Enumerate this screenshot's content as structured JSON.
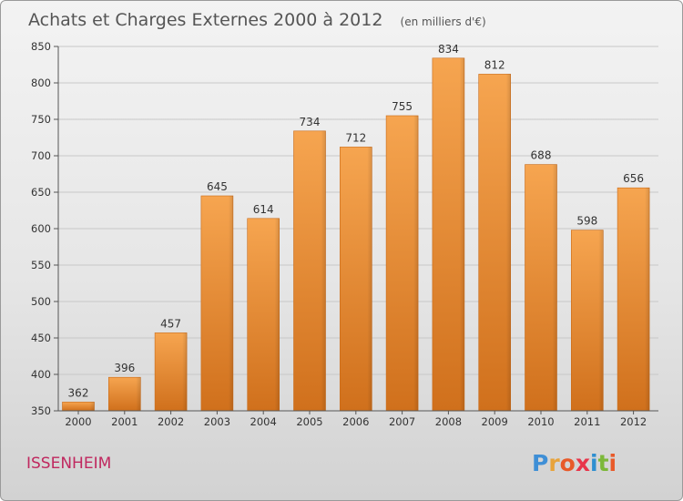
{
  "chart_data": {
    "type": "bar",
    "title": "Achats et Charges Externes 2000 à 2012",
    "subtitle": "(en milliers d'€)",
    "categories": [
      "2000",
      "2001",
      "2002",
      "2003",
      "2004",
      "2005",
      "2006",
      "2007",
      "2008",
      "2009",
      "2010",
      "2011",
      "2012"
    ],
    "values": [
      362,
      396,
      457,
      645,
      614,
      734,
      712,
      755,
      834,
      812,
      688,
      598,
      656
    ],
    "ylim": [
      350,
      850
    ],
    "yticks": [
      350,
      400,
      450,
      500,
      550,
      600,
      650,
      700,
      750,
      800,
      850
    ],
    "grid": true,
    "bar_color": "#f28e2c"
  },
  "footer": {
    "commune": "ISSENHEIM",
    "logo_letters": [
      "P",
      "r",
      "o",
      "x",
      "i",
      "t",
      "i"
    ],
    "logo_colors": [
      "#3f8fd6",
      "#e8a33a",
      "#e85a2a",
      "#e8354a",
      "#2f8fd0",
      "#7cb83a",
      "#e85a2a"
    ]
  }
}
